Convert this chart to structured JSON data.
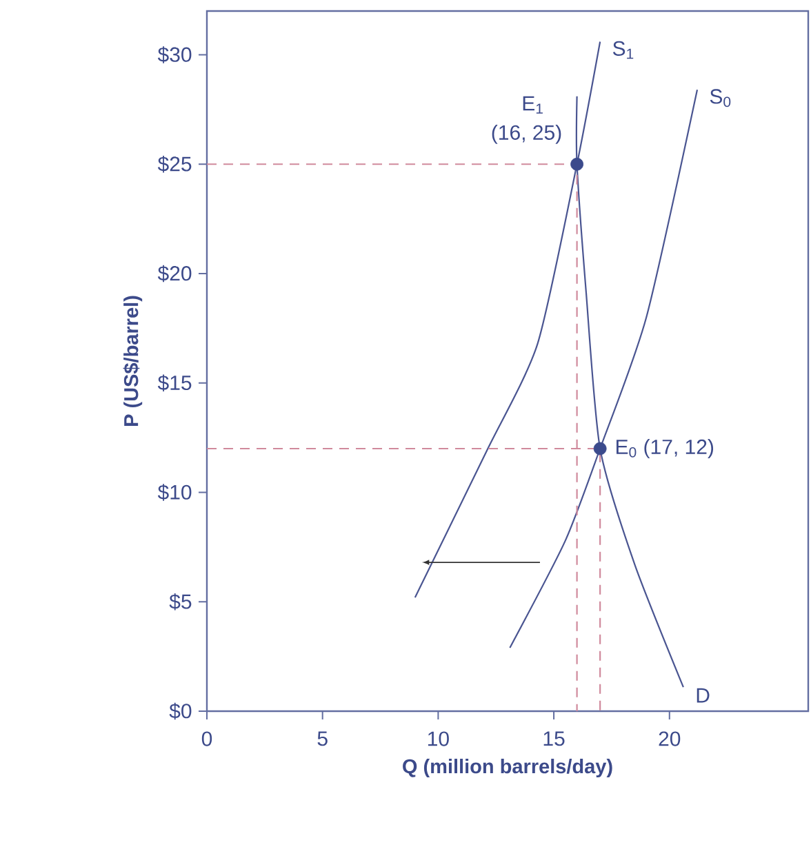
{
  "chart_data": {
    "type": "line",
    "xlabel": "Q (million barrels/day)",
    "ylabel": "P (US$/barrel)",
    "xlim": [
      0,
      26
    ],
    "ylim": [
      0,
      32
    ],
    "xticks": [
      0,
      5,
      10,
      15,
      20
    ],
    "yticks": [
      {
        "value": 0,
        "label": "$0"
      },
      {
        "value": 5,
        "label": "$5"
      },
      {
        "value": 10,
        "label": "$10"
      },
      {
        "value": 15,
        "label": "$15"
      },
      {
        "value": 20,
        "label": "$20"
      },
      {
        "value": 25,
        "label": "$25"
      },
      {
        "value": 30,
        "label": "$30"
      }
    ],
    "marker": "none",
    "line_style": "solid",
    "series": [
      {
        "name": "S$_{1}$",
        "color": "#4a5591",
        "x": [
          9.0,
          12.1,
          14.3,
          16,
          17.0
        ],
        "values": [
          5.2,
          11.9,
          16.8,
          25,
          30.6
        ]
      },
      {
        "name": "S$_{0}$",
        "color": "#4a5591",
        "x": [
          13.1,
          15.5,
          17,
          19.0,
          21.2
        ],
        "values": [
          2.9,
          7.8,
          12,
          18.0,
          28.4
        ]
      },
      {
        "name": "D",
        "color": "#4a5591",
        "x": [
          16.0,
          16,
          16.4,
          17,
          18.5,
          20.6
        ],
        "values": [
          28.1,
          25,
          19.1,
          12,
          6.7,
          1.1
        ]
      },
      {
        "type": "line",
        "line_style": "dashed",
        "color": "#d08a9c",
        "x": [
          0,
          16,
          16
        ],
        "values": [
          25,
          25,
          0
        ]
      },
      {
        "type": "line",
        "line_style": "dashed",
        "color": "#d08a9c",
        "x": [
          0,
          17,
          17
        ],
        "values": [
          12,
          12,
          0
        ]
      },
      {
        "type": "scatter",
        "marker": "circle",
        "color": "#3b4a8c",
        "x": [
          16,
          17
        ],
        "values": [
          25,
          12
        ]
      }
    ],
    "annotations": [
      "E$_{1}$",
      "(16, 25)",
      "E$_{0}$ (17, 12)"
    ]
  }
}
